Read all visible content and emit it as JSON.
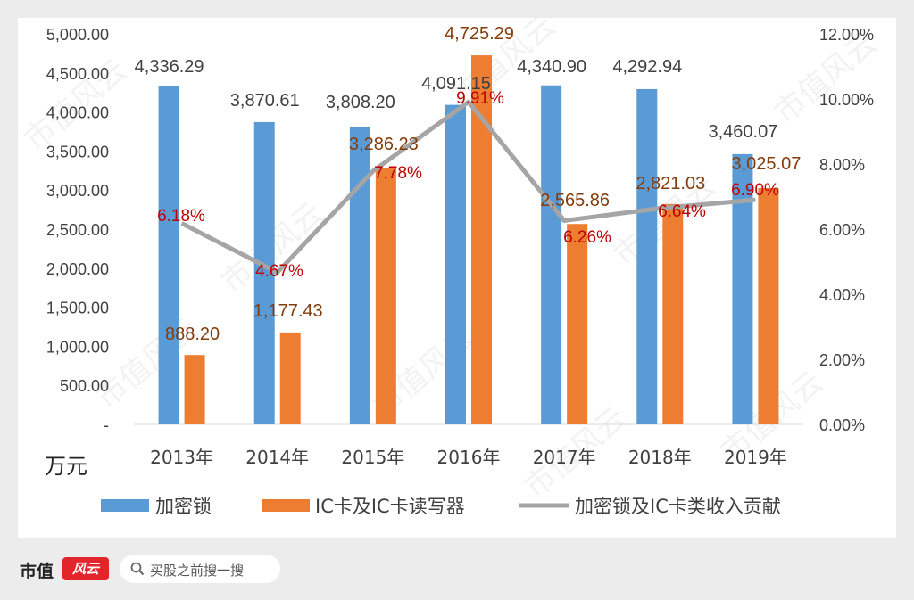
{
  "chart_data": {
    "type": "bar",
    "categories": [
      "2013年",
      "2014年",
      "2015年",
      "2016年",
      "2017年",
      "2018年",
      "2019年"
    ],
    "series": [
      {
        "name": "加密锁",
        "kind": "bar",
        "axis": "left",
        "color": "#5b9bd5",
        "values": [
          4336.29,
          3870.61,
          3808.2,
          4091.15,
          4340.9,
          4292.94,
          3460.07
        ],
        "labels": [
          "4,336.29",
          "3,870.61",
          "3,808.20",
          "4,091.15",
          "4,340.90",
          "4,292.94",
          "3,460.07"
        ]
      },
      {
        "name": "IC卡及IC卡读写器",
        "kind": "bar",
        "axis": "left",
        "color": "#ed7d31",
        "values": [
          888.2,
          1177.43,
          3286.23,
          4725.29,
          2565.86,
          2821.03,
          3025.07
        ],
        "labels": [
          "888.20",
          "1,177.43",
          "3,286.23",
          "4,725.29",
          "2,565.86",
          "2,821.03",
          "3,025.07"
        ]
      },
      {
        "name": "加密锁及IC卡类收入贡献",
        "kind": "line",
        "axis": "right",
        "color": "#a5a5a5",
        "values": [
          6.18,
          4.67,
          7.78,
          9.91,
          6.26,
          6.64,
          6.9
        ],
        "labels": [
          "6.18%",
          "4.67%",
          "7.78%",
          "9.91%",
          "6.26%",
          "6.64%",
          "6.90%"
        ]
      }
    ],
    "y_left": {
      "ylim": [
        0,
        5000
      ],
      "ticks": [
        "-",
        "500.00",
        "1,000.00",
        "1,500.00",
        "2,000.00",
        "2,500.00",
        "3,000.00",
        "3,500.00",
        "4,000.00",
        "4,500.00",
        "5,000.00"
      ],
      "unit_label": "万元"
    },
    "y_right": {
      "ylim": [
        0,
        12
      ],
      "ticks": [
        "0.00%",
        "2.00%",
        "4.00%",
        "6.00%",
        "8.00%",
        "10.00%",
        "12.00%"
      ]
    },
    "legend_position": "bottom",
    "grid": false,
    "colors": {
      "bar_label": "#404040",
      "bar2_label": "#843c0c",
      "line_label": "#c00000",
      "axis_text": "#404040"
    }
  },
  "watermark": "市值风云",
  "footer": {
    "brand_text": "市值",
    "badge_text": "风云",
    "search_icon": "search-icon",
    "search_placeholder": "买股之前搜一搜"
  }
}
